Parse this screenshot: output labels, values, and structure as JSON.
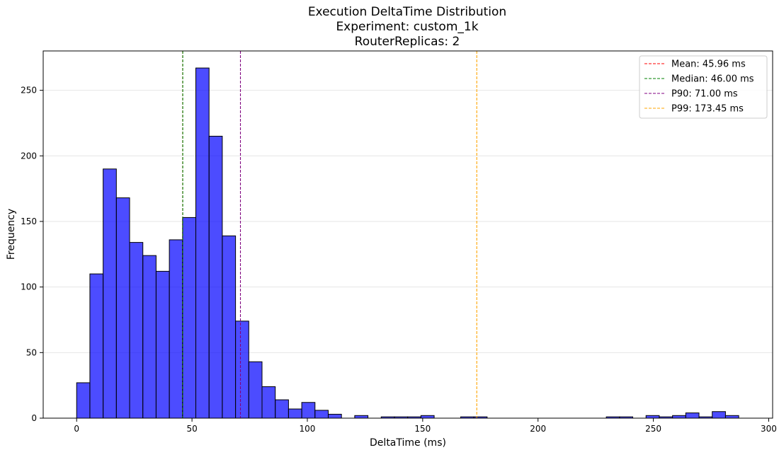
{
  "chart_data": {
    "type": "bar",
    "title_lines": [
      "Execution DeltaTime Distribution",
      "Experiment: custom_1k",
      "RouterReplicas: 2"
    ],
    "xlabel": "DeltaTime (ms)",
    "ylabel": "Frequency",
    "xlim": [
      -14.5,
      301.7
    ],
    "ylim": [
      0,
      280
    ],
    "xticks": [
      0,
      50,
      100,
      150,
      200,
      250,
      300
    ],
    "yticks": [
      0,
      50,
      100,
      150,
      200,
      250
    ],
    "grid": "horizontal",
    "bar_color": "#0000ff",
    "bar_alpha": 0.7,
    "bar_edge_color": "#000000",
    "bin_edges": [
      0,
      5.74,
      11.48,
      17.22,
      22.96,
      28.7,
      34.44,
      40.18,
      45.92,
      51.66,
      57.4,
      63.14,
      68.88,
      74.62,
      80.36,
      86.1,
      91.84,
      97.58,
      103.32,
      109.06,
      114.8,
      120.54,
      126.28,
      132.02,
      137.76,
      143.5,
      149.24,
      154.98,
      160.72,
      166.46,
      172.2,
      177.94,
      183.68,
      189.42,
      195.16,
      200.9,
      206.64,
      212.38,
      218.12,
      223.86,
      229.6,
      235.34,
      241.08,
      246.82,
      252.56,
      258.3,
      264.04,
      269.78,
      275.52,
      281.26,
      287.0
    ],
    "counts": [
      27,
      110,
      190,
      168,
      134,
      124,
      112,
      136,
      153,
      267,
      215,
      139,
      74,
      43,
      24,
      14,
      7,
      12,
      6,
      3,
      0,
      2,
      0,
      1,
      1,
      1,
      2,
      0,
      0,
      1,
      1,
      0,
      0,
      0,
      0,
      0,
      0,
      0,
      0,
      0,
      1,
      1,
      0,
      2,
      1,
      2,
      4,
      1,
      5,
      2
    ],
    "vlines": [
      {
        "name": "Mean: 45.96 ms",
        "x": 45.96,
        "color": "#ff0000"
      },
      {
        "name": "Median: 46.00 ms",
        "x": 46.0,
        "color": "#008000"
      },
      {
        "name": "P90: 71.00 ms",
        "x": 71.0,
        "color": "#800080"
      },
      {
        "name": "P99: 173.45 ms",
        "x": 173.45,
        "color": "#ffa500"
      }
    ],
    "legend_position": "top-right"
  }
}
